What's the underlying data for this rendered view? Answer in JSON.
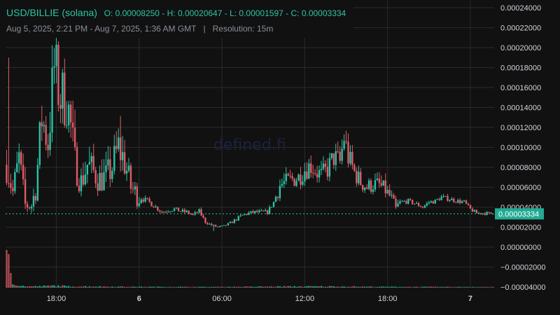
{
  "legend": {
    "symbol": "USD/BILLIE (solana)",
    "open_text": "O: 0.00008250",
    "high_text": "H: 0.00020647",
    "low_text": "L: 0.00001597",
    "close_text": "C: 0.00003334",
    "range": "Aug 5, 2025, 2:21 PM - Aug 7, 2025, 1:36 AM GMT",
    "separator": "|",
    "resolution": "Resolution: 15m"
  },
  "watermark": "defined.fi",
  "colors": {
    "background": "#111111",
    "grid": "#2a2a2a",
    "up": "#2bc4a6",
    "down": "#e05c68",
    "price_tag": "#22ab94",
    "watermark": "#1d2240"
  },
  "chart_data": {
    "type": "candlestick",
    "x_ticks": [
      {
        "label": "18:00",
        "bar": 24,
        "bold": false
      },
      {
        "label": "6",
        "bar": 64,
        "bold": true
      },
      {
        "label": "06:00",
        "bar": 104,
        "bold": false
      },
      {
        "label": "12:00",
        "bar": 144,
        "bold": false
      },
      {
        "label": "18:00",
        "bar": 184,
        "bold": false
      },
      {
        "label": "7",
        "bar": 224,
        "bold": true
      }
    ],
    "y_ticks": [
      "0.00024000",
      "0.00022000",
      "0.00020000",
      "0.00018000",
      "0.00016000",
      "0.00014000",
      "0.00012000",
      "0.00010000",
      "0.00008000",
      "0.00006000",
      "0.00004000",
      "0.00002000",
      "0.00000000",
      "−0.00002000",
      "−0.00004000"
    ],
    "y_tick_values": [
      0.00024,
      0.00022,
      0.0002,
      0.00018,
      0.00016,
      0.00014,
      0.00012,
      0.0001,
      8e-05,
      6e-05,
      4e-05,
      2e-05,
      0,
      -2e-05,
      -4e-05
    ],
    "ylim": [
      -4e-05,
      0.00024
    ],
    "last_price": 3.334e-05,
    "last_price_label": "0.00003334",
    "bar_count": 236,
    "grid": true,
    "series_ohlc_summary": {
      "open": 8.25e-05,
      "high": 0.00020647,
      "low": 1.597e-05,
      "close": 3.334e-05
    },
    "price_points": [
      [
        0,
        8.25e-05
      ],
      [
        3,
        5.5e-05
      ],
      [
        6,
        8.8e-05
      ],
      [
        9,
        4.2e-05
      ],
      [
        12,
        4.2e-05
      ],
      [
        14,
        5.8e-05
      ],
      [
        17,
        0.00013
      ],
      [
        20,
        0.000105
      ],
      [
        23,
        0.00018
      ],
      [
        26,
        0.00015
      ],
      [
        29,
        0.00015
      ],
      [
        31,
        0.00012
      ],
      [
        33,
        8.5e-05
      ],
      [
        36,
        6.5e-05
      ],
      [
        39,
        8.3e-05
      ],
      [
        42,
        7.5e-05
      ],
      [
        45,
        6.8e-05
      ],
      [
        48,
        7e-05
      ],
      [
        51,
        8e-05
      ],
      [
        54,
        0.0001
      ],
      [
        57,
        8.5e-05
      ],
      [
        60,
        6e-05
      ],
      [
        63,
        5.2e-05
      ],
      [
        66,
        4.8e-05
      ],
      [
        69,
        4.5e-05
      ],
      [
        72,
        4e-05
      ],
      [
        75,
        3.5e-05
      ],
      [
        78,
        3.7e-05
      ],
      [
        81,
        3.8e-05
      ],
      [
        84,
        3.6e-05
      ],
      [
        87,
        3.5e-05
      ],
      [
        90,
        3.2e-05
      ],
      [
        93,
        3.6e-05
      ],
      [
        96,
        2.5e-05
      ],
      [
        99,
        2.2e-05
      ],
      [
        102,
        2e-05
      ],
      [
        105,
        2.1e-05
      ],
      [
        108,
        2.4e-05
      ],
      [
        111,
        2.8e-05
      ],
      [
        114,
        3.2e-05
      ],
      [
        117,
        3.4e-05
      ],
      [
        120,
        3.5e-05
      ],
      [
        124,
        3.5e-05
      ],
      [
        126,
        3.5e-05
      ],
      [
        129,
        4.5e-05
      ],
      [
        132,
        6.2e-05
      ],
      [
        135,
        6.5e-05
      ],
      [
        138,
        6.8e-05
      ],
      [
        141,
        7e-05
      ],
      [
        144,
        7.8e-05
      ],
      [
        147,
        8.2e-05
      ],
      [
        150,
        7.5e-05
      ],
      [
        152,
        7.2e-05
      ],
      [
        155,
        7.8e-05
      ],
      [
        158,
        9e-05
      ],
      [
        161,
        8.5e-05
      ],
      [
        163,
        0.00011
      ],
      [
        165,
        9e-05
      ],
      [
        168,
        7.5e-05
      ],
      [
        171,
        6.5e-05
      ],
      [
        174,
        6e-05
      ],
      [
        177,
        6.3e-05
      ],
      [
        180,
        6.2e-05
      ],
      [
        183,
        5.7e-05
      ],
      [
        186,
        4.8e-05
      ],
      [
        188,
        3.8e-05
      ],
      [
        190,
        4.5e-05
      ],
      [
        194,
        4.6e-05
      ],
      [
        198,
        4.3e-05
      ],
      [
        201,
        4e-05
      ],
      [
        204,
        4.5e-05
      ],
      [
        207,
        4.6e-05
      ],
      [
        210,
        5e-05
      ],
      [
        214,
        4.8e-05
      ],
      [
        218,
        4.6e-05
      ],
      [
        221,
        4.5e-05
      ],
      [
        224,
        3.8e-05
      ],
      [
        227,
        3.4e-05
      ],
      [
        231,
        3.4e-05
      ],
      [
        235,
        3.334e-05
      ]
    ],
    "volume_points": [
      [
        0,
        0.9
      ],
      [
        1,
        0.8
      ],
      [
        2,
        0.35
      ],
      [
        3,
        0.08
      ],
      [
        4,
        0.06
      ],
      [
        5,
        0.05
      ],
      [
        6,
        0.04
      ],
      [
        7,
        0.04
      ],
      [
        8,
        0.05
      ],
      [
        9,
        0.03
      ],
      [
        10,
        0.04
      ],
      [
        12,
        0.03
      ],
      [
        20,
        0.04
      ],
      [
        24,
        0.05
      ],
      [
        30,
        0.03
      ],
      [
        40,
        0.03
      ],
      [
        60,
        0.02
      ],
      [
        100,
        0.015
      ],
      [
        140,
        0.03
      ],
      [
        160,
        0.03
      ],
      [
        180,
        0.02
      ],
      [
        220,
        0.015
      ],
      [
        235,
        0.01
      ]
    ]
  }
}
